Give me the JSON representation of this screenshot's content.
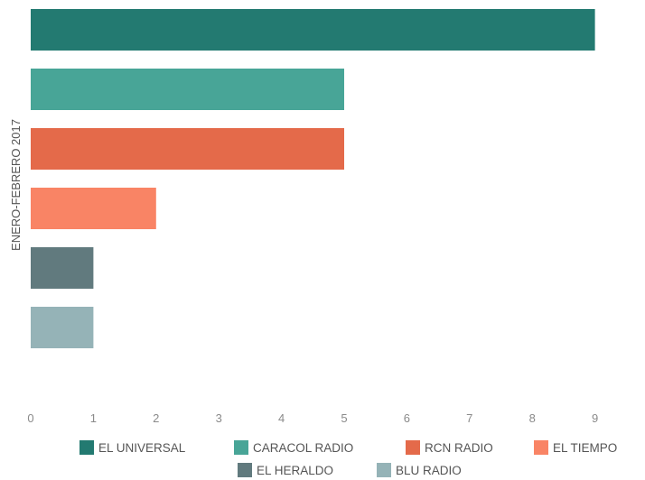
{
  "chart_data": {
    "type": "bar",
    "orientation": "horizontal",
    "category_axis_label": "ENERO-FEBRERO 2017",
    "series": [
      {
        "name": "EL UNIVERSAL",
        "value": 9,
        "color": "#237a71"
      },
      {
        "name": "CARACOL RADIO",
        "value": 5,
        "color": "#48a597"
      },
      {
        "name": "RCN RADIO",
        "value": 5,
        "color": "#e46a4a"
      },
      {
        "name": "EL TIEMPO",
        "value": 2,
        "color": "#f98465"
      },
      {
        "name": "EL HERALDO",
        "value": 1,
        "color": "#617a7e"
      },
      {
        "name": "BLU RADIO",
        "value": 1,
        "color": "#95b3b7"
      }
    ],
    "x_ticks": [
      "0",
      "1",
      "2",
      "3",
      "4",
      "5",
      "6",
      "7",
      "8",
      "9"
    ],
    "xlim": [
      0,
      9
    ],
    "grid": false,
    "legend_position": "bottom"
  }
}
